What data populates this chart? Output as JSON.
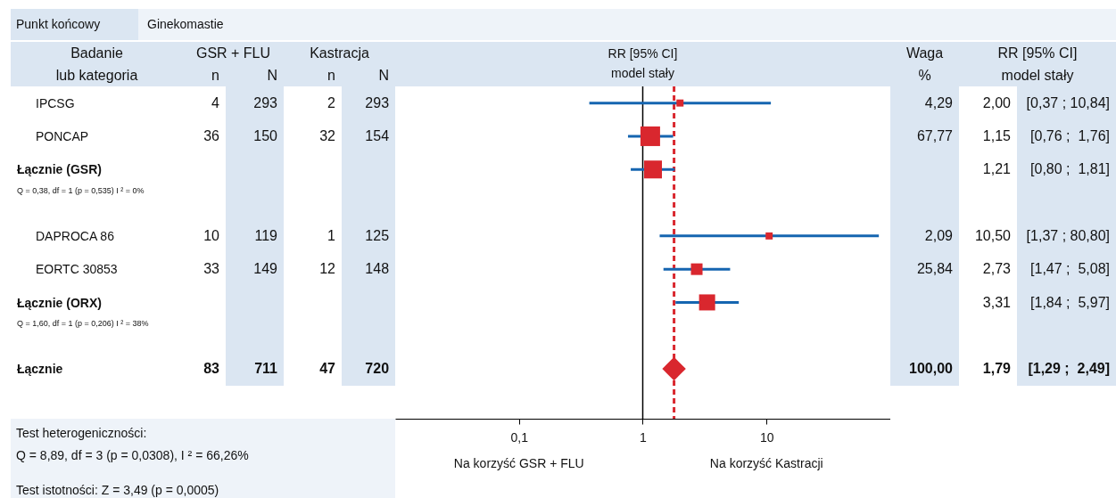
{
  "chart_data": [
    {
      "type": "other",
      "title": "Punkt końcowy",
      "subtitle": "Ginekomastie",
      "categories": [
        [
          "Badanie",
          "lub kategoria"
        ],
        [
          "GSR + FLU",
          "n"
        ],
        [
          null,
          "N"
        ],
        [
          "Kastracja",
          "n"
        ],
        [
          null,
          "N"
        ]
      ],
      "y_categories": [
        {
          "kind": "study"
        },
        {
          "kind": "study"
        },
        {
          "kind": "subtotal"
        },
        {
          "kind": "note",
          "text": "Q = 0,38, df = 1 (p = 0,535) I ² = 0%"
        },
        {
          "kind": "study"
        },
        {
          "kind": "study"
        },
        {
          "kind": "subtotal"
        },
        {
          "kind": "note",
          "text": "Q = 1,60, df = 1 (p = 0,206) I ² = 38%"
        },
        {
          "kind": "total"
        }
      ],
      "cell_labels": [
        [
          "4",
          "293",
          "2",
          "293"
        ],
        [
          "36",
          "150",
          "32",
          "154"
        ],
        [
          null,
          null,
          null,
          null
        ],
        [
          null,
          null,
          null,
          null
        ],
        [
          "10",
          "119",
          "1",
          "125"
        ],
        [
          "33",
          "149",
          "12",
          "148"
        ],
        [
          null,
          null,
          null,
          null
        ],
        [
          null,
          null,
          null,
          null
        ],
        [
          "83",
          "711",
          "47",
          "720"
        ]
      ],
      "annotations": [
        "Test heterogeniczności:",
        "Q = 8,89, df = 3 (p = 0,0308), I ² = 66,26%",
        "Test istotności: Z = 3,49 (p = 0,0005)"
      ]
    },
    {
      "type": "scatter",
      "title": "RR [95% CI]",
      "subtitle": "model stały",
      "orientation": "horizontal",
      "log": "x",
      "tick_labels": "x",
      "categories": [
        "IPCSG",
        "PONCAP",
        "Łącznie (GSR)",
        null,
        "DAPROCA 86",
        "EORTC 30853",
        "Łącznie (ORX)",
        null,
        "Łącznie",
        null
      ],
      "xlim": [
        0.01,
        100
      ],
      "xticks": [
        {
          "value": 0.1,
          "label": "0,1"
        },
        1,
        10
      ],
      "series": [
        {
          "color": "#1565b0",
          "colors": [
            "#d9272e",
            "#d9272e",
            "#d9272e",
            null,
            "#d9272e",
            "#d9272e",
            "#d9272e",
            null,
            null,
            null
          ],
          "marker": "square",
          "values": [
            2.0,
            1.15,
            1.21,
            null,
            10.5,
            2.73,
            3.31,
            null,
            null,
            null
          ],
          "errors": [
            [
              0.37,
              10.84
            ],
            [
              0.76,
              1.76
            ],
            [
              0.8,
              1.81
            ],
            null,
            [
              1.37,
              80.8
            ],
            [
              1.47,
              5.08
            ],
            [
              1.84,
              5.97
            ],
            null,
            null,
            null
          ],
          "sizes": [
            0.13,
            1,
            0.83,
            null,
            0.13,
            0.35,
            0.67,
            null,
            null,
            null
          ]
        },
        {
          "color": "#d9272e",
          "marker": "diamond",
          "values": [
            null,
            null,
            null,
            null,
            null,
            null,
            null,
            null,
            1.79,
            null
          ]
        }
      ],
      "ref_lines": [
        {
          "axis": "x",
          "value": 1,
          "color": "#000000",
          "line_style": "solid"
        },
        {
          "axis": "x",
          "value": 1.79,
          "color": "#d9272e",
          "line_style": "dashed"
        }
      ],
      "annotations": [
        "Na korzyść GSR + FLU",
        "Na korzyść Kastracji"
      ]
    },
    {
      "type": "other",
      "categories": [
        [
          "Waga",
          "%"
        ],
        [
          "RR [95% CI]",
          "model stały"
        ],
        [
          null,
          null
        ]
      ],
      "cell_labels": [
        [
          "4,29",
          "2,00",
          "[0,37 ; 10,84]"
        ],
        [
          "67,77",
          "1,15",
          "[0,76 ;  1,76]"
        ],
        [
          null,
          "1,21",
          "[0,80 ;  1,81]"
        ],
        [
          null,
          null,
          null
        ],
        [
          "2,09",
          "10,50",
          "[1,37 ; 80,80]"
        ],
        [
          "25,84",
          "2,73",
          "[1,47 ;  5,08]"
        ],
        [
          null,
          "3,31",
          "[1,84 ;  5,97]"
        ],
        [
          null,
          null,
          null
        ],
        [
          "100,00",
          "1,79",
          "[1,29 ;  2,49]"
        ]
      ]
    }
  ]
}
